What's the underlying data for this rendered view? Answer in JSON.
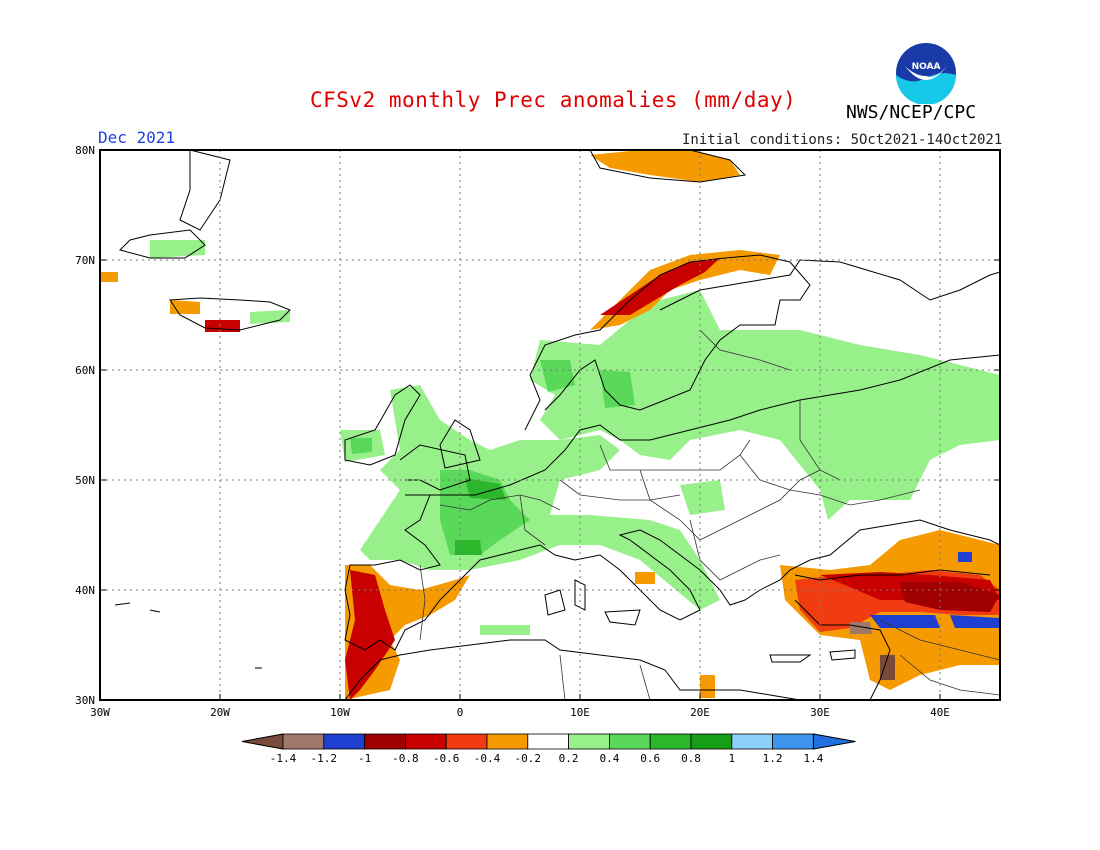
{
  "header": {
    "title": "CFSv2 monthly Prec anomalies (mm/day)",
    "agency": "NWS/NCEP/CPC",
    "logo_text": "NOAA",
    "month": "Dec 2021",
    "initial_conditions": "Initial conditions: 5Oct2021-14Oct2021"
  },
  "map": {
    "lon_range": [
      -30,
      45
    ],
    "lat_range": [
      30,
      80
    ],
    "lon_labels": [
      "30W",
      "20W",
      "10W",
      "0",
      "10E",
      "20E",
      "30E",
      "40E"
    ],
    "lat_labels": [
      "30N",
      "40N",
      "50N",
      "60N",
      "70N",
      "80N"
    ],
    "grid": "dotted"
  },
  "colorbar": {
    "labels": [
      "-1.4",
      "-1.2",
      "-1",
      "-0.8",
      "-0.6",
      "-0.4",
      "-0.2",
      "0.2",
      "0.4",
      "0.6",
      "0.8",
      "1",
      "1.2",
      "1.4"
    ],
    "colors": [
      "#7a4a3a",
      "#a0786a",
      "#1f3fd0",
      "#a00000",
      "#c80000",
      "#f03c10",
      "#f59a00",
      "#ffffff",
      "#98f08a",
      "#5ad85a",
      "#2cb62c",
      "#169e16",
      "#8cd0f8",
      "#3e94ec",
      "#2070e0"
    ]
  },
  "colors": {
    "title": "#e00000",
    "month": "#2040e0",
    "frame": "#000000"
  }
}
